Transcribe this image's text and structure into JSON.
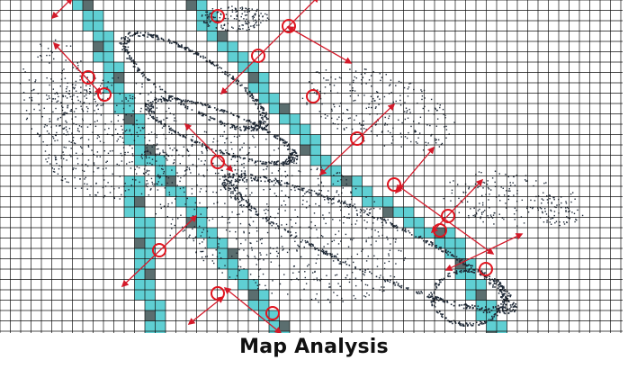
{
  "caption": "Map Analysis",
  "colors": {
    "grid_line": "#111111",
    "path_cell": "#5fcfd3",
    "path_cell_dark": "#5b6e6f",
    "point_cloud": "#1d2836",
    "waypoint": "#e0141e",
    "arrow": "#d41a2a"
  },
  "icons": {
    "waypoint": "waypoint-circle-icon",
    "direction": "direction-arrow-icon"
  }
}
